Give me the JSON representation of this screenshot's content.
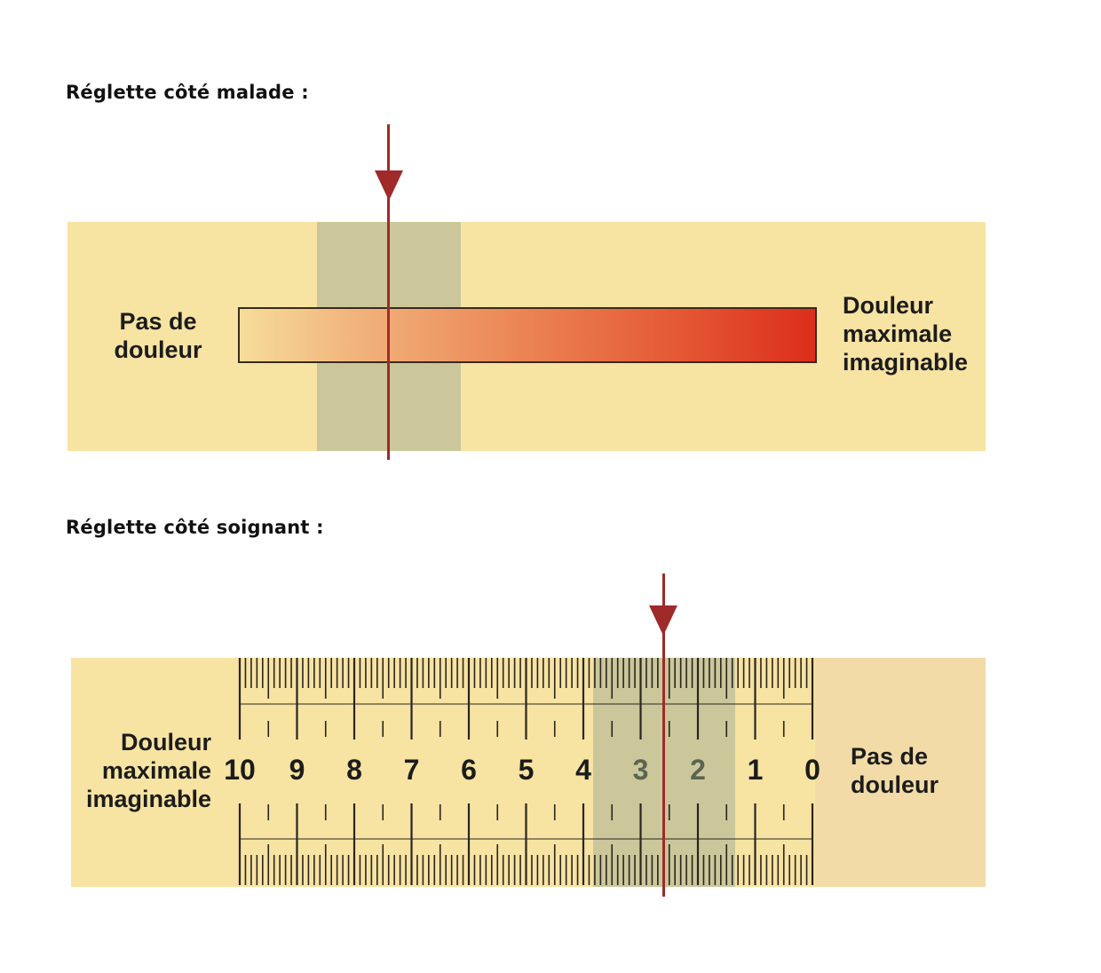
{
  "patient_side": {
    "title": "Réglette côté malade :",
    "left_label": [
      "Pas de",
      "douleur"
    ],
    "right_label": [
      "Douleur",
      "maximale",
      "imaginable"
    ],
    "pointer_value": 2.6
  },
  "caregiver_side": {
    "title": "Réglette côté soignant :",
    "left_label": [
      "Douleur",
      "maximale",
      "imaginable"
    ],
    "right_label": [
      "Pas de",
      "douleur"
    ],
    "scale_numbers": [
      "10",
      "9",
      "8",
      "7",
      "6",
      "5",
      "4",
      "3",
      "2",
      "1",
      "0"
    ],
    "pointer_value": 2.6
  },
  "colors": {
    "strip": "#f7e3a2",
    "pointer": "#a02a2a",
    "slider": "#a8b096",
    "bar_start": "#f6dd9a",
    "bar_end": "#dc2e1c"
  }
}
